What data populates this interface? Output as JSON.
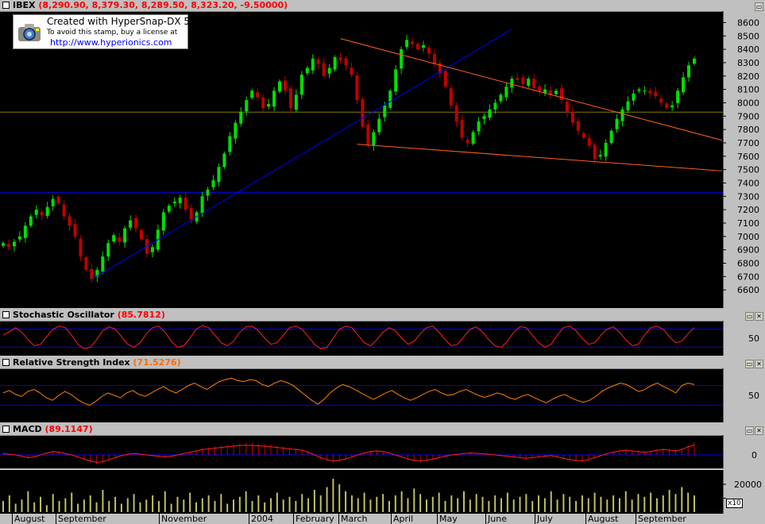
{
  "price_panel": {
    "title": "IBEX",
    "values": "(8,290.90, 8,379.30, 8,289.50, 8,323.20, -9.50000)"
  },
  "stamp": {
    "line1": "Created with HyperSnap-DX 5",
    "line2": "To avoid this stamp, buy a license at",
    "line3": "http://www.hyperionics.com",
    "icon": "camera-icon"
  },
  "stoch_panel": {
    "title": "Stochastic Oscillator",
    "value": "(85.7812)"
  },
  "rsi_panel": {
    "title": "Relative Strength Index",
    "value": "(71.5276)"
  },
  "macd_panel": {
    "title": "MACD",
    "value": "(89.1147)"
  },
  "volume_panel": {
    "multiplier": "x10"
  },
  "window_buttons": [
    "▭",
    "✕"
  ],
  "x_axis": {
    "labels": [
      "August",
      "September",
      "November",
      "2004",
      "February",
      "March",
      "April",
      "May",
      "June",
      "July",
      "August",
      "September"
    ]
  },
  "colors": {
    "up": "#00e000",
    "down": "#c00000",
    "blue_line": "#0000ff",
    "orange_line": "#ff6020",
    "olive_line": "#808000",
    "volume": "#c0c060",
    "oscillator": "#ff2020",
    "rsi": "#ff8000"
  },
  "chart_data": [
    {
      "type": "candlestick",
      "title": "IBEX",
      "ylim": [
        6500,
        8650
      ],
      "y_ticks": [
        6600,
        6700,
        6800,
        6900,
        7000,
        7100,
        7200,
        7300,
        7400,
        7500,
        7600,
        7700,
        7800,
        7900,
        8000,
        8100,
        8200,
        8300,
        8400,
        8500,
        8600
      ],
      "x_labels": [
        "August",
        "September",
        "November",
        "2004",
        "February",
        "March",
        "April",
        "May",
        "June",
        "July",
        "August",
        "September"
      ],
      "series": [
        {
          "name": "IBEX",
          "close": [
            6950,
            6920,
            6960,
            7000,
            7080,
            7150,
            7200,
            7160,
            7220,
            7280,
            7250,
            7150,
            7080,
            7000,
            6850,
            6750,
            6680,
            6750,
            6850,
            6950,
            7010,
            6960,
            7060,
            7120,
            7060,
            6980,
            6870,
            6920,
            7050,
            7180,
            7230,
            7260,
            7290,
            7200,
            7130,
            7180,
            7300,
            7350,
            7420,
            7520,
            7620,
            7750,
            7850,
            7930,
            8020,
            8090,
            8040,
            7960,
            7990,
            8090,
            8160,
            8090,
            7960,
            8060,
            8210,
            8260,
            8330,
            8290,
            8200,
            8260,
            8340,
            8320,
            8280,
            8210,
            8020,
            7820,
            7690,
            7780,
            7880,
            7980,
            8090,
            8250,
            8400,
            8470,
            8440,
            8400,
            8430,
            8370,
            8290,
            8220,
            8120,
            7980,
            7860,
            7740,
            7700,
            7780,
            7860,
            7900,
            7950,
            8000,
            8060,
            8120,
            8180,
            8170,
            8140,
            8180,
            8110,
            8090,
            8100,
            8060,
            8090,
            8020,
            7930,
            7850,
            7790,
            7740,
            7680,
            7580,
            7610,
            7700,
            7790,
            7880,
            7950,
            8010,
            8070,
            8100,
            8090,
            8070,
            8050,
            8000,
            7960,
            7980,
            8090,
            8190,
            8280,
            8330
          ]
        }
      ]
    },
    {
      "type": "line",
      "title": "Stochastic Oscillator",
      "ylim": [
        0,
        100
      ],
      "y_ticks": [
        50
      ],
      "series": [
        {
          "name": "Stochastic Oscillator",
          "values": [
            60,
            72,
            85,
            70,
            45,
            25,
            30,
            55,
            80,
            90,
            85,
            60,
            30,
            15,
            20,
            45,
            75,
            88,
            80,
            55,
            30,
            20,
            35,
            65,
            85,
            90,
            70,
            40,
            20,
            25,
            50,
            80,
            92,
            85,
            60,
            35,
            25,
            40,
            70,
            88,
            90,
            75,
            50,
            30,
            35,
            60,
            85,
            90,
            80,
            55,
            30,
            15,
            20,
            50,
            80,
            90,
            85,
            60,
            35,
            25,
            45,
            70,
            85,
            75,
            50,
            30,
            40,
            65,
            85,
            90,
            70,
            45,
            25,
            30,
            55,
            80,
            88,
            70,
            45,
            25,
            20,
            40,
            70,
            88,
            85,
            60,
            35,
            20,
            30,
            60,
            85,
            90,
            75,
            50,
            30,
            35,
            60,
            80,
            88,
            70,
            45,
            25,
            30,
            60,
            85,
            90,
            80,
            55,
            35,
            40,
            65,
            85
          ]
        }
      ]
    },
    {
      "type": "line",
      "title": "Relative Strength Index",
      "ylim": [
        0,
        100
      ],
      "y_ticks": [
        50
      ],
      "series": [
        {
          "name": "Relative Strength Index",
          "values": [
            55,
            60,
            52,
            48,
            58,
            62,
            55,
            45,
            40,
            50,
            58,
            52,
            42,
            35,
            30,
            38,
            48,
            55,
            50,
            45,
            55,
            60,
            52,
            48,
            55,
            62,
            68,
            60,
            55,
            62,
            70,
            75,
            68,
            62,
            70,
            78,
            82,
            85,
            80,
            78,
            82,
            80,
            72,
            68,
            75,
            80,
            76,
            70,
            60,
            50,
            40,
            32,
            42,
            55,
            65,
            72,
            68,
            62,
            55,
            48,
            42,
            48,
            55,
            60,
            52,
            45,
            40,
            45,
            52,
            58,
            62,
            55,
            50,
            52,
            58,
            62,
            56,
            50,
            46,
            50,
            55,
            52,
            45,
            42,
            48,
            52,
            46,
            40,
            35,
            42,
            48,
            52,
            45,
            40,
            36,
            40,
            48,
            58,
            65,
            70,
            75,
            72,
            65,
            58,
            62,
            70,
            75,
            68,
            62,
            55,
            70,
            75,
            72
          ]
        }
      ]
    },
    {
      "type": "line",
      "title": "MACD",
      "y_ticks": [
        0
      ],
      "series": [
        {
          "name": "MACD",
          "values": [
            10,
            5,
            0,
            -10,
            -20,
            -15,
            0,
            15,
            25,
            20,
            10,
            0,
            -15,
            -30,
            -45,
            -55,
            -50,
            -35,
            -20,
            -5,
            5,
            10,
            5,
            0,
            -5,
            -10,
            -15,
            -10,
            0,
            10,
            20,
            30,
            40,
            45,
            50,
            55,
            60,
            65,
            70,
            72,
            70,
            68,
            65,
            60,
            55,
            50,
            45,
            40,
            35,
            20,
            0,
            -20,
            -35,
            -45,
            -40,
            -30,
            -15,
            0,
            15,
            25,
            30,
            25,
            15,
            0,
            -15,
            -30,
            -40,
            -45,
            -40,
            -30,
            -20,
            -10,
            0,
            5,
            10,
            15,
            12,
            8,
            5,
            0,
            -5,
            -10,
            -15,
            -20,
            -25,
            -20,
            -15,
            -10,
            -5,
            -15,
            -25,
            -35,
            -40,
            -45,
            -35,
            -20,
            -5,
            10,
            20,
            30,
            35,
            30,
            25,
            20,
            25,
            35,
            40,
            35,
            30,
            40,
            60,
            75
          ]
        }
      ]
    },
    {
      "type": "bar",
      "title": "Volume",
      "y_ticks": [
        10000,
        20000
      ],
      "series": [
        {
          "name": "Volume",
          "values": [
            8000,
            12000,
            6000,
            9000,
            15000,
            7000,
            11000,
            5000,
            13000,
            8000,
            10000,
            14000,
            6000,
            9000,
            12000,
            7000,
            16000,
            8000,
            11000,
            6000,
            10000,
            13000,
            7000,
            9000,
            12000,
            8000,
            15000,
            6000,
            11000,
            9000,
            14000,
            7000,
            10000,
            12000,
            8000,
            13000,
            6000,
            9000,
            11000,
            15000,
            8000,
            12000,
            7000,
            10000,
            14000,
            9000,
            11000,
            8000,
            13000,
            10000,
            16000,
            12000,
            18000,
            24000,
            20000,
            15000,
            12000,
            10000,
            14000,
            9000,
            11000,
            13000,
            8000,
            12000,
            15000,
            10000,
            17000,
            13000,
            9000,
            11000,
            14000,
            8000,
            12000,
            10000,
            15000,
            9000,
            13000,
            11000,
            8000,
            12000,
            10000,
            14000,
            9000,
            11000,
            13000,
            8000,
            12000,
            10000,
            15000,
            9000,
            13000,
            11000,
            8000,
            12000,
            10000,
            14000,
            11000,
            9000,
            12000,
            10000,
            15000,
            9000,
            13000,
            11000,
            14000,
            10000,
            12000,
            16000,
            13000,
            18000,
            14000,
            12000
          ]
        }
      ]
    }
  ]
}
